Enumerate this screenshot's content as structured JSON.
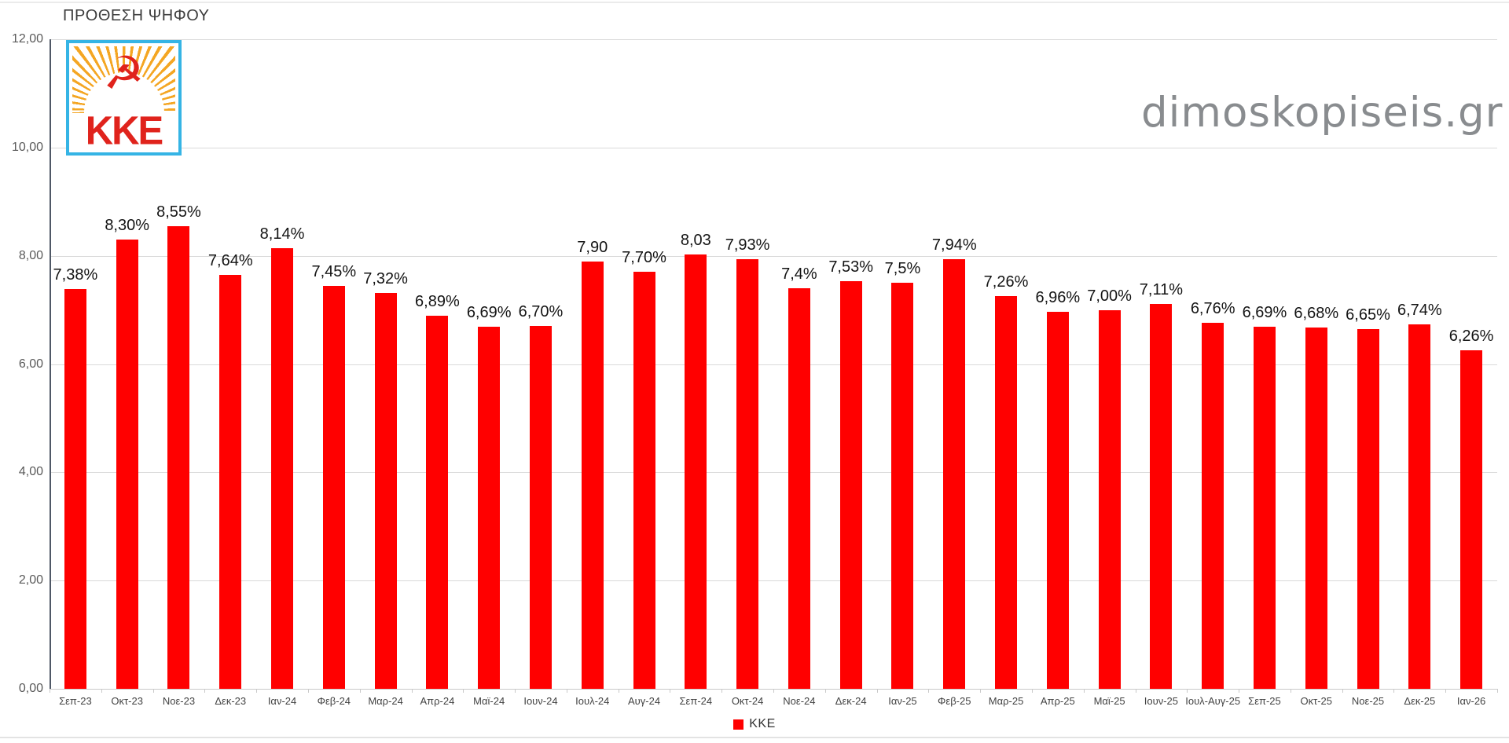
{
  "title": "ΠΡΟΘΕΣΗ ΨΗΦΟΥ",
  "watermark": "dimoskopiseis.gr",
  "logo": {
    "text": "KKE",
    "symbol": "☭",
    "border_color": "#35b4e5",
    "ray_color": "#f4a623",
    "red_color": "#e0231c"
  },
  "legend": {
    "label": "ΚΚΕ",
    "swatch_color": "#ff0000"
  },
  "chart_data": {
    "type": "bar",
    "title": "ΠΡΟΘΕΣΗ ΨΗΦΟΥ",
    "series_name": "ΚΚΕ",
    "categories": [
      "Σεπ-23",
      "Οκτ-23",
      "Νοε-23",
      "Δεκ-23",
      "Ιαν-24",
      "Φεβ-24",
      "Μαρ-24",
      "Απρ-24",
      "Μαϊ-24",
      "Ιουν-24",
      "Ιουλ-24",
      "Αυγ-24",
      "Σεπ-24",
      "Οκτ-24",
      "Νοε-24",
      "Δεκ-24",
      "Ιαν-25",
      "Φεβ-25",
      "Μαρ-25",
      "Απρ-25",
      "Μαϊ-25",
      "Ιουν-25",
      "Ιουλ-Αυγ-25",
      "Σεπ-25",
      "Οκτ-25",
      "Νοε-25",
      "Δεκ-25",
      "Ιαν-26"
    ],
    "values": [
      7.38,
      8.3,
      8.55,
      7.64,
      8.14,
      7.45,
      7.32,
      6.89,
      6.69,
      6.7,
      7.9,
      7.7,
      8.03,
      7.93,
      7.4,
      7.53,
      7.5,
      7.94,
      7.26,
      6.96,
      7.0,
      7.11,
      6.76,
      6.69,
      6.68,
      6.65,
      6.74,
      6.26
    ],
    "value_labels": [
      "7,38%",
      "8,30%",
      "8,55%",
      "7,64%",
      "8,14%",
      "7,45%",
      "7,32%",
      "6,89%",
      "6,69%",
      "6,70%",
      "7,90",
      "7,70%",
      "8,03",
      "7,93%",
      "7,4%",
      "7,53%",
      "7,5%",
      "7,94%",
      "7,26%",
      "6,96%",
      "7,00%",
      "7,11%",
      "6,76%",
      "6,69%",
      "6,68%",
      "6,65%",
      "6,74%",
      "6,26%"
    ],
    "bar_color": "#ff0000",
    "ylim": [
      0,
      12
    ],
    "ytick_labels": [
      "12,00",
      "10,00",
      "8,00",
      "6,00",
      "4,00",
      "2,00",
      "0,00"
    ],
    "grid": true,
    "legend_position": "bottom"
  }
}
